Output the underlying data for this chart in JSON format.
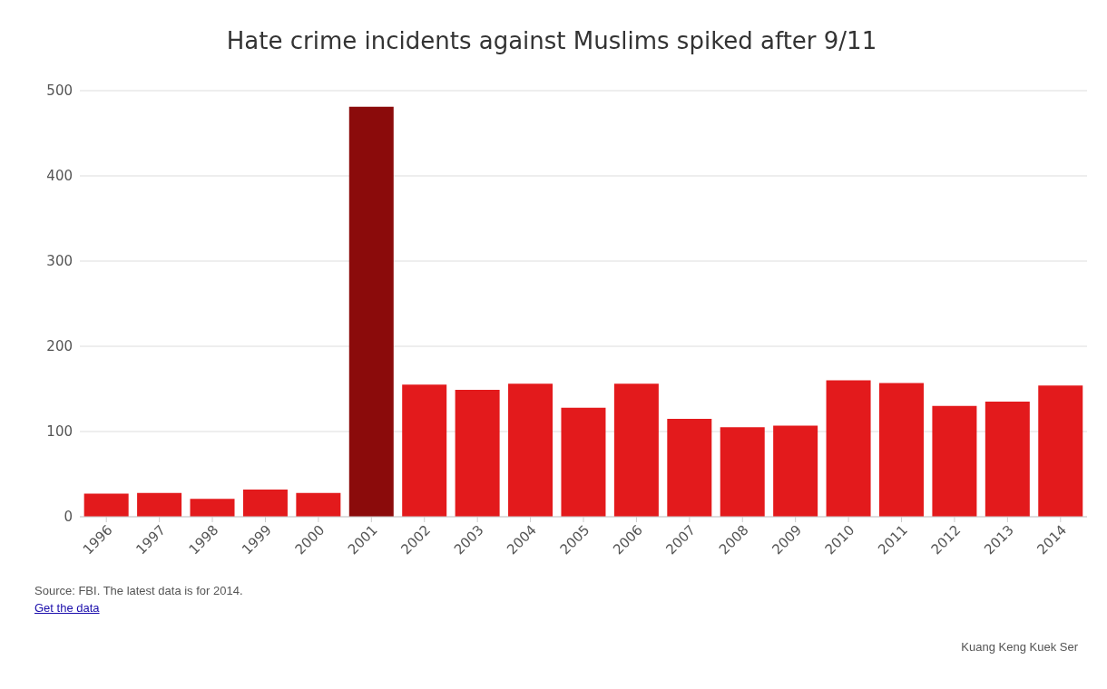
{
  "chart_data": {
    "type": "bar",
    "title": "Hate crime incidents against Muslims spiked after 9/11",
    "categories": [
      "1996",
      "1997",
      "1998",
      "1999",
      "2000",
      "2001",
      "2002",
      "2003",
      "2004",
      "2005",
      "2006",
      "2007",
      "2008",
      "2009",
      "2010",
      "2011",
      "2012",
      "2013",
      "2014"
    ],
    "values": [
      27,
      28,
      21,
      32,
      28,
      481,
      155,
      149,
      156,
      128,
      156,
      115,
      105,
      107,
      160,
      157,
      130,
      135,
      154
    ],
    "colors": [
      "#e31a1c",
      "#e31a1c",
      "#e31a1c",
      "#e31a1c",
      "#e31a1c",
      "#8b0b0b",
      "#e31a1c",
      "#e31a1c",
      "#e31a1c",
      "#e31a1c",
      "#e31a1c",
      "#e31a1c",
      "#e31a1c",
      "#e31a1c",
      "#e31a1c",
      "#e31a1c",
      "#e31a1c",
      "#e31a1c",
      "#e31a1c"
    ],
    "ylim": [
      0,
      500
    ],
    "yticks": [
      0,
      100,
      200,
      300,
      400,
      500
    ],
    "grid": "y",
    "annotations": [
      "Source: FBI. The latest data is for 2014.",
      "Get the data",
      "Kuang Keng Kuek Ser"
    ]
  }
}
